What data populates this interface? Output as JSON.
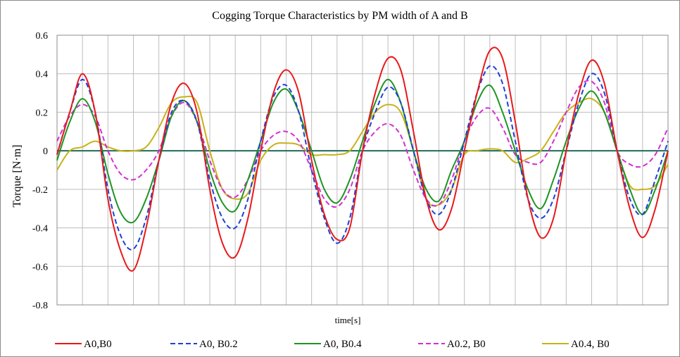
{
  "chart_data": {
    "type": "line",
    "title": "Cogging Torque Characteristics by PM width  of A and B",
    "xlabel": "time[s]",
    "ylabel": "Torque [N·m]",
    "ylim": [
      -0.8,
      0.6
    ],
    "yticks": [
      "0.6",
      "0.4",
      "0.2",
      "0",
      "-0.2",
      "-0.4",
      "-0.6",
      "-0.8"
    ],
    "xlim": [
      0,
      24
    ],
    "grid": "vertical and horizontal, light gray",
    "legend_position": "bottom",
    "zero_line_color": "#1f6b5a",
    "series": [
      {
        "name": "A0,B0",
        "color": "#e8191b",
        "dash": "solid",
        "points": [
          [
            0,
            -0.02
          ],
          [
            0.5,
            0.2
          ],
          [
            1,
            0.4
          ],
          [
            1.5,
            0.2
          ],
          [
            2,
            -0.25
          ],
          [
            2.5,
            -0.52
          ],
          [
            3,
            -0.62
          ],
          [
            3.5,
            -0.4
          ],
          [
            4,
            -0.05
          ],
          [
            4.5,
            0.25
          ],
          [
            5,
            0.35
          ],
          [
            5.5,
            0.2
          ],
          [
            6,
            -0.2
          ],
          [
            6.5,
            -0.48
          ],
          [
            7,
            -0.55
          ],
          [
            7.5,
            -0.35
          ],
          [
            8,
            0.0
          ],
          [
            8.5,
            0.3
          ],
          [
            9,
            0.42
          ],
          [
            9.5,
            0.3
          ],
          [
            10,
            -0.05
          ],
          [
            10.5,
            -0.33
          ],
          [
            11,
            -0.46
          ],
          [
            11.5,
            -0.4
          ],
          [
            12,
            0.0
          ],
          [
            12.5,
            0.3
          ],
          [
            13,
            0.48
          ],
          [
            13.5,
            0.42
          ],
          [
            14,
            0.1
          ],
          [
            14.5,
            -0.25
          ],
          [
            15,
            -0.41
          ],
          [
            15.5,
            -0.3
          ],
          [
            16,
            0.0
          ],
          [
            16.5,
            0.3
          ],
          [
            17,
            0.52
          ],
          [
            17.5,
            0.48
          ],
          [
            18,
            0.15
          ],
          [
            18.5,
            -0.25
          ],
          [
            19,
            -0.45
          ],
          [
            19.5,
            -0.35
          ],
          [
            20,
            0.0
          ],
          [
            20.5,
            0.3
          ],
          [
            21,
            0.47
          ],
          [
            21.5,
            0.35
          ],
          [
            22,
            0.0
          ],
          [
            22.5,
            -0.3
          ],
          [
            23,
            -0.45
          ],
          [
            23.5,
            -0.3
          ],
          [
            24,
            0.0
          ]
        ]
      },
      {
        "name": "A0, B0.2",
        "color": "#1f3fd6",
        "dash": "dashed",
        "points": [
          [
            0,
            -0.02
          ],
          [
            0.5,
            0.2
          ],
          [
            1,
            0.37
          ],
          [
            1.5,
            0.2
          ],
          [
            2,
            -0.2
          ],
          [
            2.5,
            -0.44
          ],
          [
            3,
            -0.51
          ],
          [
            3.5,
            -0.35
          ],
          [
            4,
            -0.05
          ],
          [
            4.5,
            0.2
          ],
          [
            5,
            0.26
          ],
          [
            5.5,
            0.15
          ],
          [
            6,
            -0.15
          ],
          [
            6.5,
            -0.35
          ],
          [
            7,
            -0.4
          ],
          [
            7.5,
            -0.25
          ],
          [
            8,
            0.05
          ],
          [
            8.5,
            0.28
          ],
          [
            9,
            0.34
          ],
          [
            9.5,
            0.2
          ],
          [
            10,
            -0.1
          ],
          [
            10.5,
            -0.35
          ],
          [
            11,
            -0.48
          ],
          [
            11.5,
            -0.35
          ],
          [
            12,
            0.0
          ],
          [
            12.5,
            0.2
          ],
          [
            13,
            0.33
          ],
          [
            13.5,
            0.25
          ],
          [
            14,
            0.0
          ],
          [
            14.5,
            -0.25
          ],
          [
            15,
            -0.33
          ],
          [
            15.5,
            -0.2
          ],
          [
            16,
            0.05
          ],
          [
            16.5,
            0.3
          ],
          [
            17,
            0.44
          ],
          [
            17.5,
            0.35
          ],
          [
            18,
            0.05
          ],
          [
            18.5,
            -0.25
          ],
          [
            19,
            -0.35
          ],
          [
            19.5,
            -0.25
          ],
          [
            20,
            0.0
          ],
          [
            20.5,
            0.25
          ],
          [
            21,
            0.4
          ],
          [
            21.5,
            0.3
          ],
          [
            22,
            0.0
          ],
          [
            22.5,
            -0.25
          ],
          [
            23,
            -0.33
          ],
          [
            23.5,
            -0.15
          ],
          [
            24,
            0.05
          ]
        ]
      },
      {
        "name": "A0, B0.4",
        "color": "#1e9424",
        "dash": "solid",
        "points": [
          [
            0,
            -0.05
          ],
          [
            0.5,
            0.15
          ],
          [
            1,
            0.27
          ],
          [
            1.5,
            0.15
          ],
          [
            2,
            -0.12
          ],
          [
            2.5,
            -0.32
          ],
          [
            3,
            -0.37
          ],
          [
            3.5,
            -0.25
          ],
          [
            4,
            -0.05
          ],
          [
            4.5,
            0.18
          ],
          [
            5,
            0.26
          ],
          [
            5.5,
            0.15
          ],
          [
            6,
            -0.1
          ],
          [
            6.5,
            -0.27
          ],
          [
            7,
            -0.31
          ],
          [
            7.5,
            -0.15
          ],
          [
            8,
            0.05
          ],
          [
            8.5,
            0.25
          ],
          [
            9,
            0.32
          ],
          [
            9.5,
            0.2
          ],
          [
            10,
            0.0
          ],
          [
            10.5,
            -0.2
          ],
          [
            11,
            -0.27
          ],
          [
            11.5,
            -0.15
          ],
          [
            12,
            0.05
          ],
          [
            12.5,
            0.25
          ],
          [
            13,
            0.37
          ],
          [
            13.5,
            0.25
          ],
          [
            14,
            0.0
          ],
          [
            14.5,
            -0.2
          ],
          [
            15,
            -0.26
          ],
          [
            15.5,
            -0.1
          ],
          [
            16,
            0.05
          ],
          [
            16.5,
            0.25
          ],
          [
            17,
            0.34
          ],
          [
            17.5,
            0.2
          ],
          [
            18,
            0.0
          ],
          [
            18.5,
            -0.2
          ],
          [
            19,
            -0.3
          ],
          [
            19.5,
            -0.15
          ],
          [
            20,
            0.05
          ],
          [
            20.5,
            0.22
          ],
          [
            21,
            0.31
          ],
          [
            21.5,
            0.2
          ],
          [
            22,
            0.0
          ],
          [
            22.5,
            -0.2
          ],
          [
            23,
            -0.33
          ],
          [
            23.5,
            -0.2
          ],
          [
            24,
            0.0
          ]
        ]
      },
      {
        "name": "A0.2, B0",
        "color": "#d42fd0",
        "dash": "dashed",
        "points": [
          [
            0,
            0.05
          ],
          [
            0.5,
            0.18
          ],
          [
            1,
            0.24
          ],
          [
            1.5,
            0.18
          ],
          [
            2,
            0.0
          ],
          [
            2.5,
            -0.12
          ],
          [
            3,
            -0.15
          ],
          [
            3.5,
            -0.1
          ],
          [
            4,
            0.0
          ],
          [
            4.5,
            0.18
          ],
          [
            5,
            0.25
          ],
          [
            5.5,
            0.15
          ],
          [
            6,
            -0.05
          ],
          [
            6.5,
            -0.2
          ],
          [
            7,
            -0.24
          ],
          [
            7.5,
            -0.15
          ],
          [
            8,
            0.0
          ],
          [
            8.5,
            0.08
          ],
          [
            9,
            0.1
          ],
          [
            9.5,
            0.05
          ],
          [
            10,
            -0.1
          ],
          [
            10.5,
            -0.25
          ],
          [
            11,
            -0.29
          ],
          [
            11.5,
            -0.2
          ],
          [
            12,
            0.0
          ],
          [
            12.5,
            0.1
          ],
          [
            13,
            0.14
          ],
          [
            13.5,
            0.08
          ],
          [
            14,
            -0.1
          ],
          [
            14.5,
            -0.25
          ],
          [
            15,
            -0.28
          ],
          [
            15.5,
            -0.15
          ],
          [
            16,
            0.05
          ],
          [
            16.5,
            0.18
          ],
          [
            17,
            0.22
          ],
          [
            17.5,
            0.12
          ],
          [
            18,
            -0.02
          ],
          [
            18.5,
            -0.06
          ],
          [
            19,
            -0.06
          ],
          [
            19.5,
            0.05
          ],
          [
            20,
            0.2
          ],
          [
            20.5,
            0.33
          ],
          [
            21,
            0.36
          ],
          [
            21.5,
            0.25
          ],
          [
            22,
            0.0
          ],
          [
            22.5,
            -0.07
          ],
          [
            23,
            -0.08
          ],
          [
            23.5,
            -0.02
          ],
          [
            24,
            0.12
          ]
        ]
      },
      {
        "name": "A0.4, B0",
        "color": "#c8b21a",
        "dash": "solid",
        "points": [
          [
            0,
            -0.1
          ],
          [
            0.5,
            0.0
          ],
          [
            1,
            0.02
          ],
          [
            1.5,
            0.05
          ],
          [
            2,
            0.02
          ],
          [
            2.5,
            0.0
          ],
          [
            3,
            0.0
          ],
          [
            3.5,
            0.02
          ],
          [
            4,
            0.12
          ],
          [
            4.5,
            0.25
          ],
          [
            5,
            0.28
          ],
          [
            5.5,
            0.25
          ],
          [
            6,
            0.0
          ],
          [
            6.5,
            -0.2
          ],
          [
            7,
            -0.25
          ],
          [
            7.5,
            -0.22
          ],
          [
            8,
            -0.05
          ],
          [
            8.5,
            0.03
          ],
          [
            9,
            0.04
          ],
          [
            9.5,
            0.03
          ],
          [
            10,
            -0.02
          ],
          [
            10.5,
            -0.02
          ],
          [
            11,
            -0.02
          ],
          [
            11.5,
            0.0
          ],
          [
            12,
            0.1
          ],
          [
            12.5,
            0.2
          ],
          [
            13,
            0.24
          ],
          [
            13.5,
            0.2
          ],
          [
            14,
            0.0
          ],
          [
            14.5,
            -0.25
          ],
          [
            15,
            -0.28
          ],
          [
            15.5,
            -0.2
          ],
          [
            16,
            -0.02
          ],
          [
            16.5,
            0.0
          ],
          [
            17,
            0.01
          ],
          [
            17.5,
            0.0
          ],
          [
            18,
            -0.06
          ],
          [
            18.5,
            -0.04
          ],
          [
            19,
            0.0
          ],
          [
            19.5,
            0.1
          ],
          [
            20,
            0.2
          ],
          [
            20.5,
            0.25
          ],
          [
            21,
            0.27
          ],
          [
            21.5,
            0.2
          ],
          [
            22,
            0.0
          ],
          [
            22.5,
            -0.18
          ],
          [
            23,
            -0.2
          ],
          [
            23.5,
            -0.18
          ],
          [
            24,
            -0.07
          ]
        ]
      }
    ]
  }
}
